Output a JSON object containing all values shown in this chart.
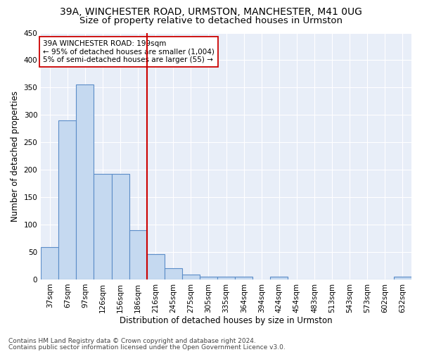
{
  "title1": "39A, WINCHESTER ROAD, URMSTON, MANCHESTER, M41 0UG",
  "title2": "Size of property relative to detached houses in Urmston",
  "xlabel": "Distribution of detached houses by size in Urmston",
  "ylabel": "Number of detached properties",
  "categories": [
    "37sqm",
    "67sqm",
    "97sqm",
    "126sqm",
    "156sqm",
    "186sqm",
    "216sqm",
    "245sqm",
    "275sqm",
    "305sqm",
    "335sqm",
    "364sqm",
    "394sqm",
    "424sqm",
    "454sqm",
    "483sqm",
    "513sqm",
    "543sqm",
    "573sqm",
    "602sqm",
    "632sqm"
  ],
  "values": [
    59,
    290,
    355,
    192,
    192,
    90,
    46,
    20,
    9,
    5,
    5,
    5,
    0,
    5,
    0,
    0,
    0,
    0,
    0,
    0,
    5
  ],
  "bar_color": "#c5d9f0",
  "bar_edge_color": "#5b8dc8",
  "vline_color": "#cc0000",
  "annotation_text": "39A WINCHESTER ROAD: 199sqm\n← 95% of detached houses are smaller (1,004)\n5% of semi-detached houses are larger (55) →",
  "annotation_box_color": "#ffffff",
  "annotation_box_edge": "#cc0000",
  "ylim": [
    0,
    450
  ],
  "yticks": [
    0,
    50,
    100,
    150,
    200,
    250,
    300,
    350,
    400,
    450
  ],
  "footer1": "Contains HM Land Registry data © Crown copyright and database right 2024.",
  "footer2": "Contains public sector information licensed under the Open Government Licence v3.0.",
  "background_color": "#e8eef8",
  "grid_color": "#ffffff",
  "title1_fontsize": 10,
  "title2_fontsize": 9.5,
  "axis_label_fontsize": 8.5,
  "tick_fontsize": 7.5,
  "annotation_fontsize": 7.5,
  "footer_fontsize": 6.5
}
